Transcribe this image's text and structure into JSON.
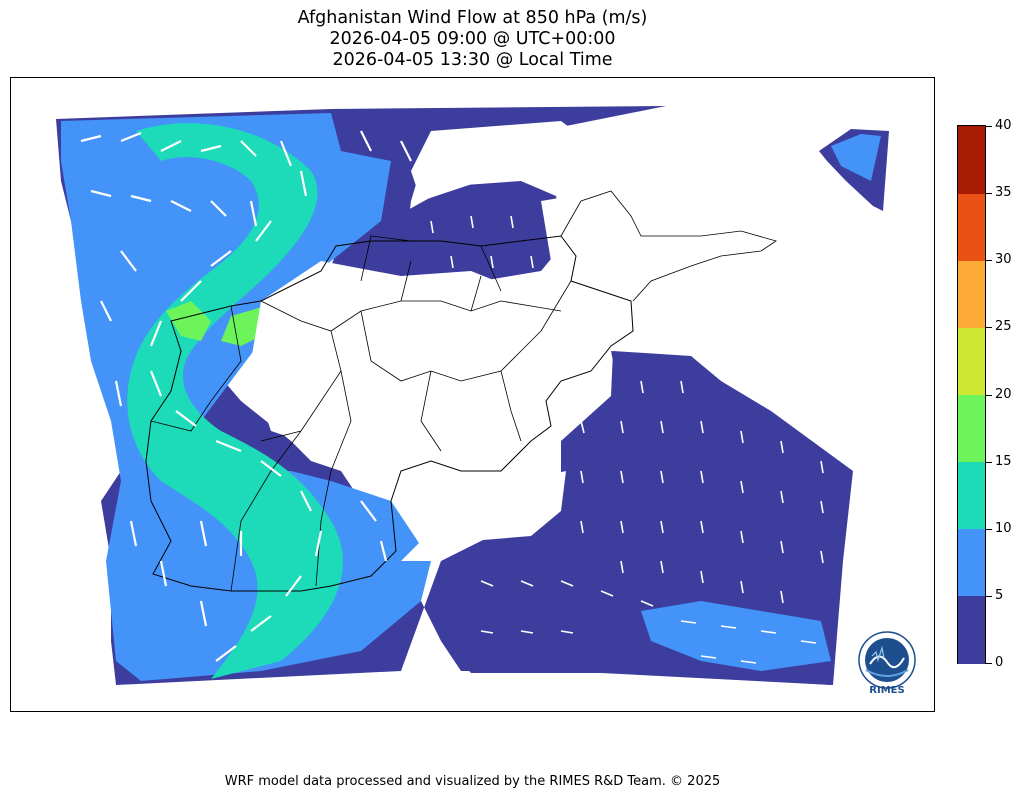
{
  "title": {
    "line1": "Afghanistan Wind Flow at 850 hPa (m/s)",
    "line2": "2026-04-05 09:00 @ UTC+00:00",
    "line3": "2026-04-05 13:30 @ Local Time"
  },
  "colorbar": {
    "levels": [
      0,
      5,
      10,
      15,
      20,
      25,
      30,
      35,
      40
    ],
    "tick_labels": [
      "0",
      "5",
      "10",
      "15",
      "20",
      "25",
      "30",
      "35",
      "40"
    ],
    "colors": [
      "#3d3d9e",
      "#4393f8",
      "#1ddbb8",
      "#6cf45a",
      "#cfe832",
      "#fdab36",
      "#ea5115",
      "#a71a04"
    ],
    "min": 0,
    "max": 40
  },
  "map": {
    "region": "Afghanistan",
    "variable": "Wind speed at 850 hPa",
    "units": "m/s",
    "vector_color": "#ffffff",
    "border_color": "#000000"
  },
  "credit": "WRF model data processed and visualized by the RIMES R&D Team. © 2025",
  "logo": {
    "text": "RIMES",
    "icon": "rimes-globe-logo"
  }
}
